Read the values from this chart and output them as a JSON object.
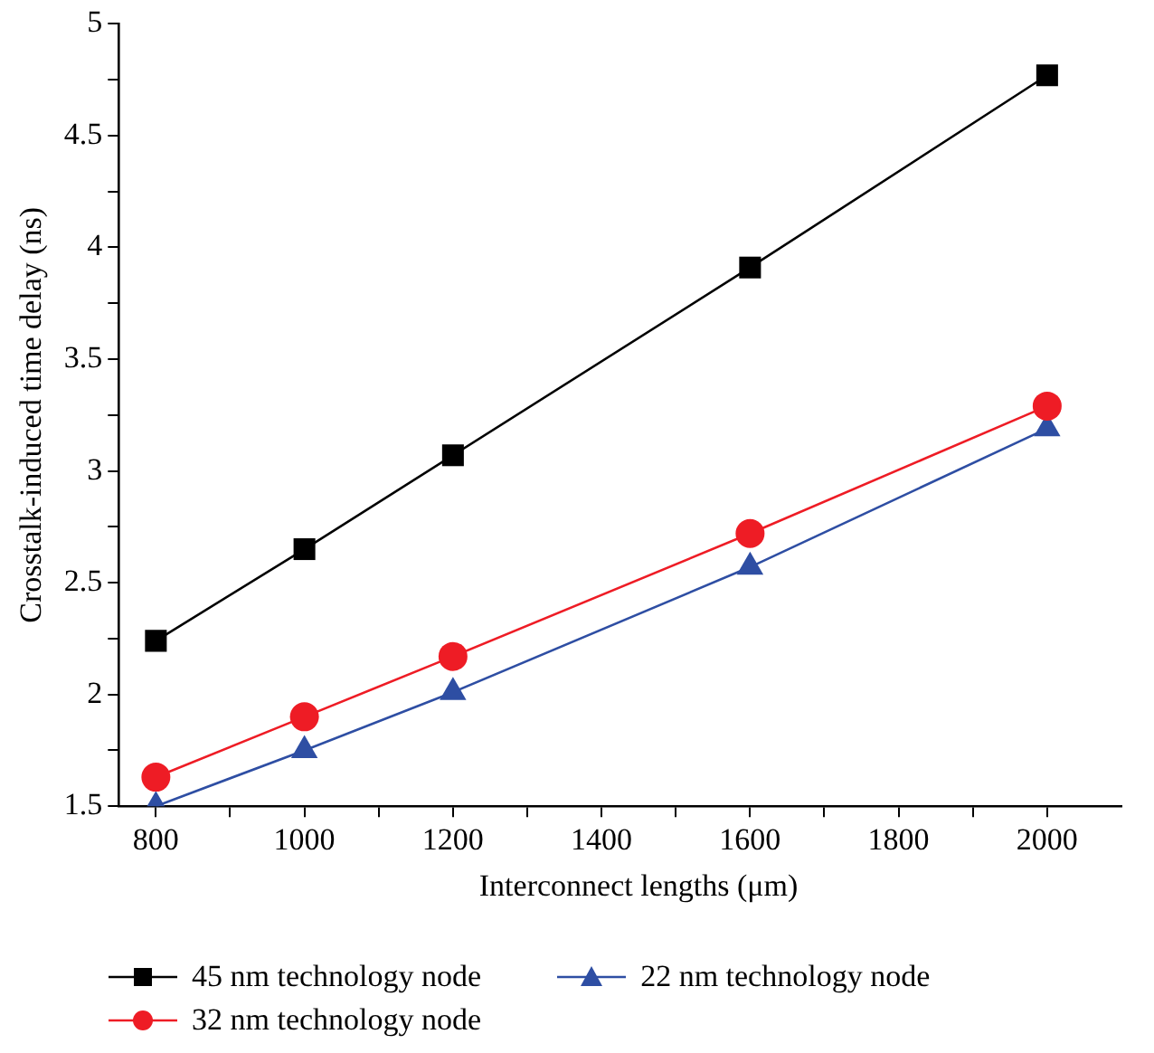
{
  "chart_data": {
    "type": "line",
    "xlabel": "Interconnect lengths (μm)",
    "ylabel": "Crosstalk-induced time delay (ns)",
    "x": [
      800,
      1000,
      1200,
      1600,
      2000
    ],
    "series": [
      {
        "name": "45 nm technology node",
        "color": "#000000",
        "marker": "square",
        "values": [
          2.24,
          2.65,
          3.07,
          3.91,
          4.77
        ]
      },
      {
        "name": "32 nm technology node",
        "color": "#ee1c25",
        "marker": "circle",
        "values": [
          1.63,
          1.9,
          2.17,
          2.72,
          3.29
        ]
      },
      {
        "name": "22 nm technology node",
        "color": "#2e4ea3",
        "marker": "triangle",
        "values": [
          1.5,
          1.75,
          2.01,
          2.57,
          3.19
        ]
      }
    ],
    "xlim": [
      750,
      2100
    ],
    "xticks": [
      800,
      {
        "value": 900,
        "label": null
      },
      1000,
      {
        "value": 1100,
        "label": null
      },
      1200,
      {
        "value": 1300,
        "label": null
      },
      1400,
      {
        "value": 1500,
        "label": null
      },
      1600,
      {
        "value": 1700,
        "label": null
      },
      1800,
      {
        "value": 1900,
        "label": null
      },
      2000
    ],
    "ylim": [
      1.5,
      5
    ],
    "yticks": [
      1.5,
      {
        "value": 1.75,
        "label": null
      },
      2,
      {
        "value": 2.25,
        "label": null
      },
      2.5,
      {
        "value": 2.75,
        "label": null
      },
      3,
      {
        "value": 3.25,
        "label": null
      },
      3.5,
      {
        "value": 3.75,
        "label": null
      },
      4,
      {
        "value": 4.25,
        "label": null
      },
      4.5,
      {
        "value": 4.75,
        "label": null
      },
      5
    ],
    "grid": false,
    "legend": "bottom",
    "line_style": "solid"
  }
}
